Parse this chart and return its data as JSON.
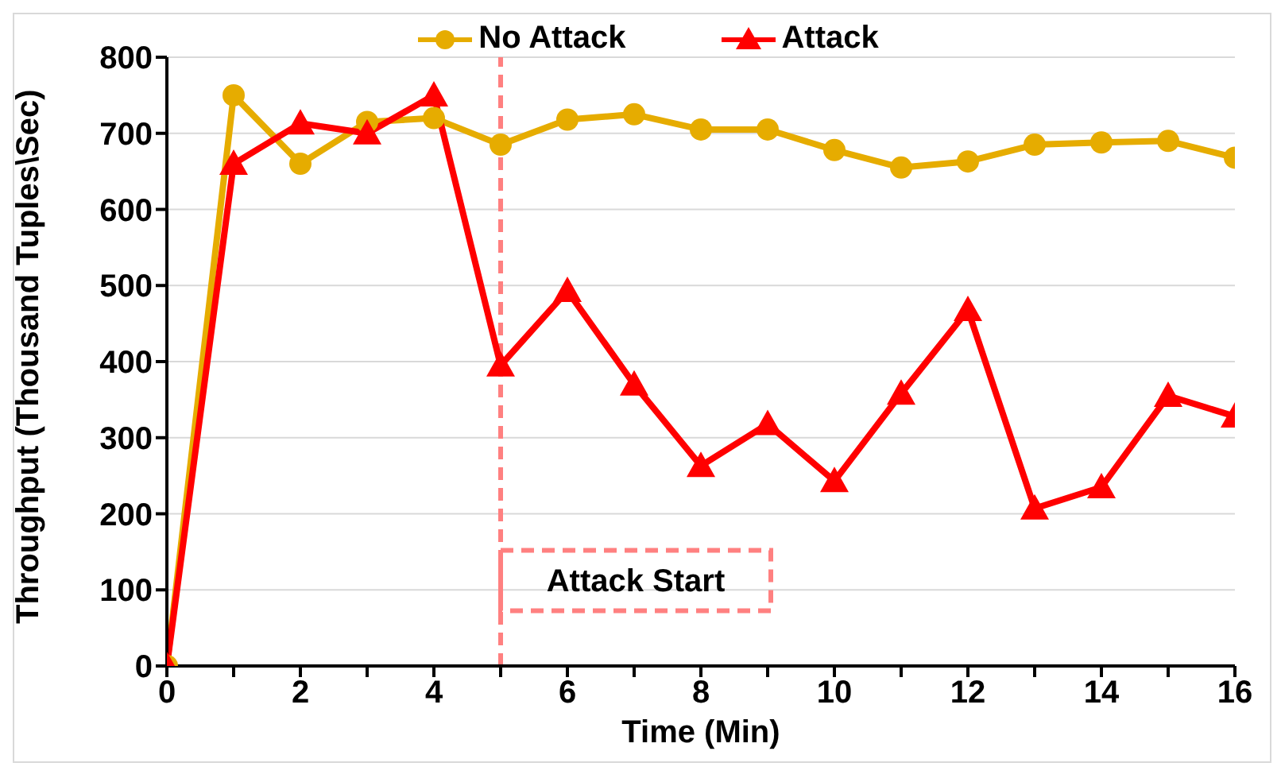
{
  "chart_data": {
    "type": "line",
    "xlabel": "Time (Min)",
    "ylabel": "Throughput (Thousand Tuples\\Sec)",
    "x": [
      0,
      1,
      2,
      3,
      4,
      5,
      6,
      7,
      8,
      9,
      10,
      11,
      12,
      13,
      14,
      15,
      16
    ],
    "series": [
      {
        "name": "No Attack",
        "color": "#e6ac00",
        "marker": "circle",
        "values": [
          0,
          750,
          660,
          715,
          720,
          685,
          718,
          725,
          705,
          705,
          678,
          655,
          663,
          685,
          688,
          690,
          668
        ]
      },
      {
        "name": "Attack",
        "color": "#ff0000",
        "marker": "triangle",
        "values": [
          0,
          660,
          713,
          700,
          750,
          395,
          493,
          370,
          263,
          318,
          243,
          358,
          468,
          207,
          235,
          355,
          328
        ]
      }
    ],
    "xlim": [
      0,
      16
    ],
    "xticks": [
      0,
      {
        "value": 1,
        "label": null
      },
      2,
      {
        "value": 3,
        "label": null
      },
      4,
      {
        "value": 5,
        "label": null
      },
      6,
      {
        "value": 7,
        "label": null
      },
      8,
      {
        "value": 9,
        "label": null
      },
      10,
      {
        "value": 11,
        "label": null
      },
      12,
      {
        "value": 13,
        "label": null
      },
      14,
      {
        "value": 15,
        "label": null
      },
      16
    ],
    "ylim": [
      0,
      800
    ],
    "yticks": [
      0,
      100,
      200,
      300,
      400,
      500,
      600,
      700,
      800
    ],
    "grid": "y",
    "legend": "top",
    "line_style": "solid",
    "ref_lines": [
      {
        "axis": "x",
        "value": 5,
        "label": "Attack Start",
        "color": "#ff8080",
        "line_style": "dashed"
      }
    ]
  }
}
